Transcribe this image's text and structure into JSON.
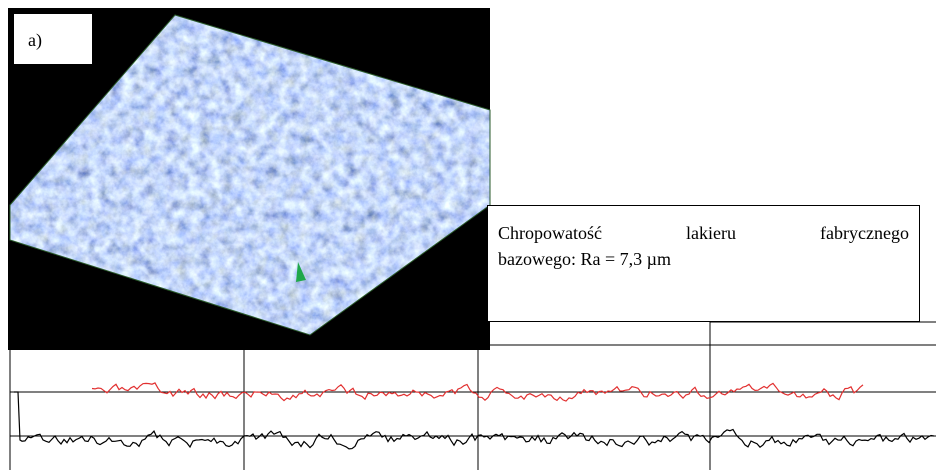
{
  "figure": {
    "panel_label": "a)",
    "caption_box": {
      "line1": "Chropowatość lakieru fabrycznego",
      "line2": "bazowego: Ra = 7,3 µm"
    }
  }
}
